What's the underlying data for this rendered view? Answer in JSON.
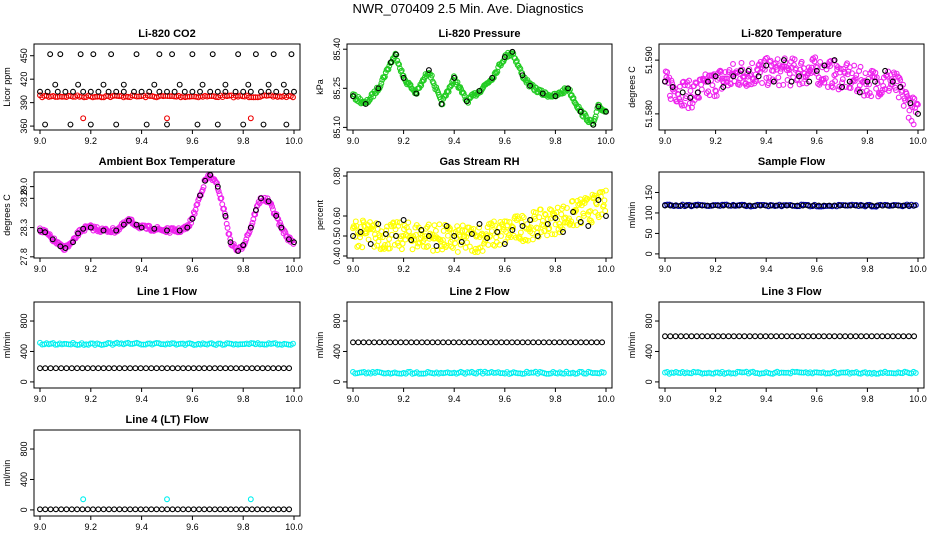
{
  "title": "NWR_070409  2.5 Min. Ave. Diagnostics",
  "colors": {
    "black": "#000000",
    "red": "#ee0000",
    "green": "#22cc22",
    "magenta": "#ee22ee",
    "yellow": "#ffff00",
    "blue": "#0000aa",
    "cyan": "#00f0f0"
  },
  "chart_data": [
    {
      "type": "scatter",
      "title": "Li-820 CO2",
      "ylabel": "Licor ppm",
      "xlim": [
        9.0,
        10.0
      ],
      "xticks": [
        "9.0",
        "9.2",
        "9.4",
        "9.6",
        "9.8",
        "10.0"
      ],
      "ylim": [
        355,
        465
      ],
      "yticks": [
        "360",
        "390",
        "420",
        "450"
      ],
      "series": [
        {
          "color": "red",
          "kind": "band",
          "x_range": [
            9.0,
            10.0
          ],
          "y": 398,
          "note": ""
        },
        {
          "color": "red",
          "kind": "points",
          "x": [
            9.17,
            9.5,
            9.83
          ],
          "y": [
            370,
            370,
            370
          ]
        },
        {
          "color": "black",
          "kind": "points",
          "x": [
            9.0,
            9.03,
            9.07,
            9.1,
            9.13,
            9.17,
            9.2,
            9.23,
            9.27,
            9.3,
            9.33,
            9.37,
            9.4,
            9.43,
            9.47,
            9.5,
            9.53,
            9.57,
            9.6,
            9.63,
            9.67,
            9.7,
            9.73,
            9.77,
            9.8,
            9.83,
            9.87,
            9.9,
            9.93,
            9.97,
            10.0,
            9.04,
            9.08,
            9.16,
            9.21,
            9.28,
            9.38,
            9.47,
            9.52,
            9.6,
            9.68,
            9.78,
            9.85,
            9.92,
            9.99,
            9.06,
            9.15,
            9.25,
            9.33,
            9.45,
            9.55,
            9.64,
            9.73,
            9.82,
            9.9,
            9.96,
            9.02,
            9.12,
            9.2,
            9.3,
            9.42,
            9.5,
            9.62,
            9.7,
            9.8,
            9.88,
            9.97
          ],
          "y": [
            404,
            404,
            404,
            404,
            404,
            404,
            404,
            404,
            404,
            404,
            404,
            404,
            404,
            404,
            404,
            404,
            404,
            404,
            404,
            404,
            404,
            404,
            404,
            404,
            404,
            404,
            404,
            404,
            404,
            404,
            404,
            452,
            452,
            452,
            452,
            452,
            452,
            452,
            452,
            452,
            452,
            452,
            452,
            452,
            452,
            413,
            413,
            413,
            413,
            413,
            413,
            413,
            413,
            413,
            413,
            413,
            362,
            362,
            362,
            362,
            362,
            362,
            362,
            362,
            362,
            362,
            362
          ]
        }
      ]
    },
    {
      "type": "scatter",
      "title": "Li-820 Pressure",
      "ylabel": "kPa",
      "xlim": [
        9.0,
        10.0
      ],
      "xticks": [
        "9.0",
        "9.2",
        "9.4",
        "9.6",
        "9.8",
        "10.0"
      ],
      "ylim": [
        85.09,
        85.42
      ],
      "yticks": [
        "85.10",
        "85.25",
        "85.40"
      ],
      "series": [
        {
          "color": "green",
          "kind": "curve",
          "x": [
            9.0,
            9.05,
            9.1,
            9.15,
            9.17,
            9.2,
            9.25,
            9.3,
            9.35,
            9.4,
            9.45,
            9.5,
            9.55,
            9.6,
            9.63,
            9.67,
            9.7,
            9.75,
            9.8,
            9.85,
            9.9,
            9.95,
            9.97,
            10.0
          ],
          "y": [
            85.22,
            85.19,
            85.25,
            85.35,
            85.38,
            85.29,
            85.23,
            85.32,
            85.19,
            85.29,
            85.2,
            85.24,
            85.29,
            85.37,
            85.39,
            85.3,
            85.26,
            85.23,
            85.22,
            85.25,
            85.16,
            85.11,
            85.18,
            85.16
          ]
        },
        {
          "color": "black",
          "kind": "points",
          "x": [
            9.0,
            9.05,
            9.1,
            9.15,
            9.17,
            9.2,
            9.25,
            9.3,
            9.35,
            9.4,
            9.45,
            9.5,
            9.55,
            9.6,
            9.63,
            9.67,
            9.7,
            9.75,
            9.8,
            9.85,
            9.9,
            9.95,
            9.97,
            10.0
          ],
          "y": [
            85.22,
            85.19,
            85.25,
            85.35,
            85.38,
            85.29,
            85.23,
            85.32,
            85.19,
            85.29,
            85.2,
            85.24,
            85.29,
            85.37,
            85.39,
            85.3,
            85.26,
            85.23,
            85.22,
            85.25,
            85.16,
            85.11,
            85.18,
            85.16
          ]
        }
      ]
    },
    {
      "type": "scatter",
      "title": "Li-820 Temperature",
      "ylabel": "degrees C",
      "xlim": [
        9.0,
        10.0
      ],
      "xticks": [
        "9.0",
        "9.2",
        "9.4",
        "9.6",
        "9.8",
        "10.0"
      ],
      "ylim": [
        51.577,
        51.593
      ],
      "yticks": [
        "51.580",
        "51.590"
      ],
      "series": [
        {
          "color": "magenta",
          "kind": "noisy",
          "x": [
            9.0,
            9.1,
            9.2,
            9.3,
            9.4,
            9.5,
            9.6,
            9.7,
            9.8,
            9.9,
            10.0
          ],
          "y": [
            51.5855,
            51.5835,
            51.5858,
            51.5875,
            51.5878,
            51.5878,
            51.588,
            51.587,
            51.5858,
            51.586,
            51.5795
          ]
        },
        {
          "color": "black",
          "kind": "points",
          "x": [
            9.0,
            9.03,
            9.07,
            9.1,
            9.13,
            9.17,
            9.2,
            9.23,
            9.27,
            9.3,
            9.33,
            9.37,
            9.4,
            9.43,
            9.47,
            9.5,
            9.53,
            9.57,
            9.6,
            9.63,
            9.67,
            9.7,
            9.73,
            9.77,
            9.8,
            9.83,
            9.87,
            9.9,
            9.93,
            9.97,
            10.0
          ],
          "y": [
            51.586,
            51.585,
            51.584,
            51.583,
            51.584,
            51.586,
            51.587,
            51.585,
            51.587,
            51.588,
            51.588,
            51.587,
            51.589,
            51.586,
            51.59,
            51.586,
            51.587,
            51.586,
            51.588,
            51.589,
            51.59,
            51.585,
            51.586,
            51.584,
            51.586,
            51.586,
            51.588,
            51.586,
            51.585,
            51.582,
            51.58
          ]
        }
      ]
    },
    {
      "type": "scatter",
      "title": "Ambient Box Temperature",
      "ylabel": "degrees C",
      "xlim": [
        9.0,
        10.0
      ],
      "xticks": [
        "9.0",
        "9.2",
        "9.4",
        "9.6",
        "9.8",
        "10.0"
      ],
      "ylim": [
        27.78,
        29.25
      ],
      "yticks": [
        "27.8",
        "28.3",
        "28.8",
        "29.0"
      ],
      "series": [
        {
          "color": "magenta",
          "kind": "curve",
          "x": [
            9.0,
            9.02,
            9.05,
            9.08,
            9.1,
            9.13,
            9.15,
            9.17,
            9.2,
            9.25,
            9.3,
            9.33,
            9.35,
            9.38,
            9.4,
            9.45,
            9.5,
            9.55,
            9.58,
            9.6,
            9.63,
            9.65,
            9.67,
            9.7,
            9.73,
            9.75,
            9.78,
            9.8,
            9.83,
            9.85,
            9.87,
            9.9,
            9.93,
            9.95,
            9.98,
            10.0
          ],
          "y": [
            28.25,
            28.22,
            28.1,
            27.98,
            27.95,
            28.05,
            28.2,
            28.28,
            28.3,
            28.25,
            28.25,
            28.35,
            28.42,
            28.35,
            28.3,
            28.28,
            28.25,
            28.25,
            28.3,
            28.45,
            28.85,
            29.1,
            29.2,
            29.0,
            28.5,
            28.05,
            27.9,
            28.0,
            28.3,
            28.6,
            28.8,
            28.75,
            28.5,
            28.3,
            28.1,
            28.05
          ]
        },
        {
          "color": "black",
          "kind": "points",
          "x": [
            9.0,
            9.02,
            9.05,
            9.08,
            9.1,
            9.13,
            9.15,
            9.17,
            9.2,
            9.25,
            9.3,
            9.33,
            9.35,
            9.38,
            9.4,
            9.45,
            9.5,
            9.55,
            9.58,
            9.6,
            9.63,
            9.65,
            9.67,
            9.7,
            9.73,
            9.75,
            9.78,
            9.8,
            9.83,
            9.85,
            9.87,
            9.9,
            9.93,
            9.95,
            9.98,
            10.0
          ],
          "y": [
            28.25,
            28.22,
            28.1,
            27.98,
            27.95,
            28.05,
            28.2,
            28.28,
            28.3,
            28.25,
            28.25,
            28.35,
            28.42,
            28.35,
            28.3,
            28.28,
            28.25,
            28.25,
            28.3,
            28.45,
            28.85,
            29.1,
            29.2,
            29.0,
            28.5,
            28.05,
            27.9,
            28.0,
            28.3,
            28.6,
            28.8,
            28.75,
            28.5,
            28.3,
            28.1,
            28.05
          ]
        }
      ]
    },
    {
      "type": "scatter",
      "title": "Gas Stream RH",
      "ylabel": "percent",
      "xlim": [
        9.0,
        10.0
      ],
      "xticks": [
        "9.0",
        "9.2",
        "9.4",
        "9.6",
        "9.8",
        "10.0"
      ],
      "ylim": [
        0.39,
        0.82
      ],
      "yticks": [
        "0.40",
        "0.50",
        "0.60",
        "0.80"
      ],
      "series": [
        {
          "color": "yellow",
          "kind": "noisy",
          "x": [
            9.0,
            9.1,
            9.2,
            9.3,
            9.4,
            9.5,
            9.6,
            9.7,
            9.8,
            9.9,
            10.0
          ],
          "y": [
            0.52,
            0.5,
            0.5,
            0.5,
            0.48,
            0.49,
            0.52,
            0.55,
            0.58,
            0.62,
            0.66
          ]
        },
        {
          "color": "black",
          "kind": "points",
          "x": [
            9.0,
            9.03,
            9.07,
            9.1,
            9.13,
            9.17,
            9.2,
            9.23,
            9.27,
            9.3,
            9.33,
            9.37,
            9.4,
            9.43,
            9.47,
            9.5,
            9.53,
            9.57,
            9.6,
            9.63,
            9.67,
            9.7,
            9.73,
            9.77,
            9.8,
            9.83,
            9.87,
            9.9,
            9.93,
            9.97,
            10.0
          ],
          "y": [
            0.5,
            0.52,
            0.46,
            0.56,
            0.51,
            0.5,
            0.58,
            0.48,
            0.53,
            0.5,
            0.45,
            0.55,
            0.5,
            0.47,
            0.51,
            0.56,
            0.49,
            0.52,
            0.46,
            0.53,
            0.55,
            0.58,
            0.5,
            0.56,
            0.59,
            0.52,
            0.62,
            0.57,
            0.55,
            0.68,
            0.6
          ]
        }
      ]
    },
    {
      "type": "scatter",
      "title": "Sample Flow",
      "ylabel": "ml/min",
      "xlim": [
        9.0,
        10.0
      ],
      "xticks": [
        "9.0",
        "9.2",
        "9.4",
        "9.6",
        "9.8",
        "10.0"
      ],
      "ylim": [
        -10,
        200
      ],
      "yticks": [
        "0",
        "50",
        "100",
        "150"
      ],
      "series": [
        {
          "color": "blue",
          "kind": "band",
          "x_range": [
            9.0,
            10.0
          ],
          "y": 118,
          "note": ""
        },
        {
          "color": "black",
          "kind": "flat",
          "x_range": [
            9.0,
            10.0
          ],
          "y": 118
        }
      ]
    },
    {
      "type": "scatter",
      "title": "Line 1 Flow",
      "ylabel": "ml/min",
      "xlim": [
        9.0,
        10.0
      ],
      "xticks": [
        "9.0",
        "9.2",
        "9.4",
        "9.6",
        "9.8",
        "10.0"
      ],
      "ylim": [
        -80,
        1050
      ],
      "yticks": [
        "0",
        "400",
        "800"
      ],
      "series": [
        {
          "color": "cyan",
          "kind": "band",
          "x_range": [
            9.0,
            10.0
          ],
          "y": 500,
          "note": ""
        },
        {
          "color": "black",
          "kind": "flat",
          "x_range": [
            9.0,
            10.0
          ],
          "y": 180
        }
      ]
    },
    {
      "type": "scatter",
      "title": "Line 2 Flow",
      "ylabel": "ml/min",
      "xlim": [
        9.0,
        10.0
      ],
      "xticks": [
        "9.0",
        "9.2",
        "9.4",
        "9.6",
        "9.8",
        "10.0"
      ],
      "ylim": [
        -80,
        1050
      ],
      "yticks": [
        "0",
        "400",
        "800"
      ],
      "series": [
        {
          "color": "cyan",
          "kind": "band",
          "x_range": [
            9.0,
            10.0
          ],
          "y": 120,
          "note": ""
        },
        {
          "color": "black",
          "kind": "flat",
          "x_range": [
            9.0,
            10.0
          ],
          "y": 520
        }
      ]
    },
    {
      "type": "scatter",
      "title": "Line 3 Flow",
      "ylabel": "ml/min",
      "xlim": [
        9.0,
        10.0
      ],
      "xticks": [
        "9.0",
        "9.2",
        "9.4",
        "9.6",
        "9.8",
        "10.0"
      ],
      "ylim": [
        -80,
        1050
      ],
      "yticks": [
        "0",
        "400",
        "800"
      ],
      "series": [
        {
          "color": "cyan",
          "kind": "band",
          "x_range": [
            9.0,
            10.0
          ],
          "y": 120,
          "note": ""
        },
        {
          "color": "black",
          "kind": "flat",
          "x_range": [
            9.0,
            10.0
          ],
          "y": 600
        }
      ]
    },
    {
      "type": "scatter",
      "title": "Line 4 (LT) Flow",
      "ylabel": "ml/min",
      "xlim": [
        9.0,
        10.0
      ],
      "xticks": [
        "9.0",
        "9.2",
        "9.4",
        "9.6",
        "9.8",
        "10.0"
      ],
      "ylim": [
        -80,
        1050
      ],
      "yticks": [
        "0",
        "400",
        "800"
      ],
      "series": [
        {
          "color": "cyan",
          "kind": "points",
          "x": [
            9.17,
            9.5,
            9.83
          ],
          "y": [
            140,
            140,
            140
          ]
        },
        {
          "color": "black",
          "kind": "flat",
          "x_range": [
            9.0,
            10.0
          ],
          "y": 8
        }
      ]
    }
  ]
}
